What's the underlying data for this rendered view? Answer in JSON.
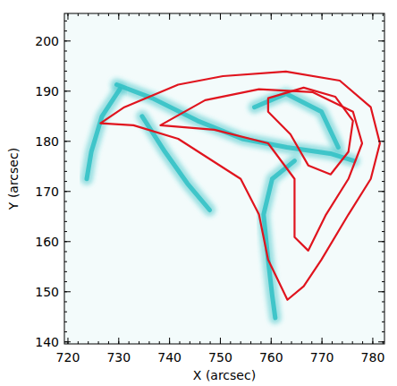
{
  "chart_data": {
    "type": "line",
    "x_label": "X (arcsec)",
    "y_label": "Y (arcsec)",
    "xlim": [
      719.3,
      782.3
    ],
    "ylim": [
      139.6,
      205.5
    ],
    "xticks": [
      720,
      730,
      740,
      750,
      760,
      770,
      780
    ],
    "yticks": [
      140,
      150,
      160,
      170,
      180,
      190,
      200
    ],
    "grid": false,
    "series": [
      {
        "type": "line",
        "color": "#2fbfc4",
        "x": [
          729.6,
          736.6,
          745.5,
          754.3,
          763.1,
          771.9,
          776.3
        ],
        "values": [
          191.3,
          188.6,
          184.1,
          180.5,
          178.8,
          177.5,
          176.1
        ]
      },
      {
        "type": "line",
        "color": "#2fbfc4",
        "x": [
          764.6,
          760.2,
          758.5,
          759.4,
          760.2,
          760.8
        ],
        "values": [
          176.1,
          172.5,
          165.4,
          156.4,
          149.3,
          144.8
        ]
      },
      {
        "type": "line",
        "color": "#2fbfc4",
        "x": [
          730.2,
          726.7,
          724.6,
          723.7
        ],
        "values": [
          190.4,
          185.0,
          177.9,
          172.5
        ]
      },
      {
        "type": "line",
        "color": "#2fbfc4",
        "x": [
          734.6,
          739.1,
          743.5,
          747.9
        ],
        "values": [
          185.0,
          177.9,
          171.6,
          166.3
        ]
      },
      {
        "type": "line",
        "color": "#2fbfc4",
        "x": [
          756.7,
          762.9,
          769.9,
          773.2
        ],
        "values": [
          186.8,
          189.5,
          185.9,
          178.8
        ]
      },
      {
        "type": "contour",
        "color": "#e0141e",
        "x": [
          763.2,
          759.4,
          757.6,
          754.0,
          741.7,
          732.9,
          726.4,
          731.1,
          741.7,
          750.5,
          762.9,
          773.5,
          779.6,
          781.4,
          779.6,
          775.2,
          769.9,
          766.4
        ],
        "values": [
          148.4,
          156.4,
          165.4,
          172.5,
          180.5,
          183.2,
          183.6,
          186.8,
          191.3,
          193.0,
          193.9,
          192.1,
          186.8,
          179.6,
          172.5,
          165.4,
          156.4,
          151.1
        ]
      },
      {
        "type": "contour",
        "color": "#e0141e",
        "x": [
          738.2,
          747.0,
          757.6,
          768.2,
          776.1,
          777.9,
          775.2,
          770.8,
          767.3,
          764.6,
          764.6,
          759.4,
          748.8
        ],
        "values": [
          183.2,
          188.2,
          190.4,
          189.8,
          185.9,
          179.6,
          172.5,
          165.4,
          158.2,
          160.9,
          172.5,
          179.6,
          182.3
        ]
      },
      {
        "type": "contour",
        "color": "#e0141e",
        "x": [
          759.4,
          766.4,
          772.6,
          776.1,
          775.2,
          771.7,
          767.3,
          763.8,
          759.4
        ],
        "values": [
          188.6,
          190.7,
          188.9,
          184.1,
          177.9,
          173.4,
          175.2,
          181.4,
          185.9
        ]
      }
    ]
  }
}
